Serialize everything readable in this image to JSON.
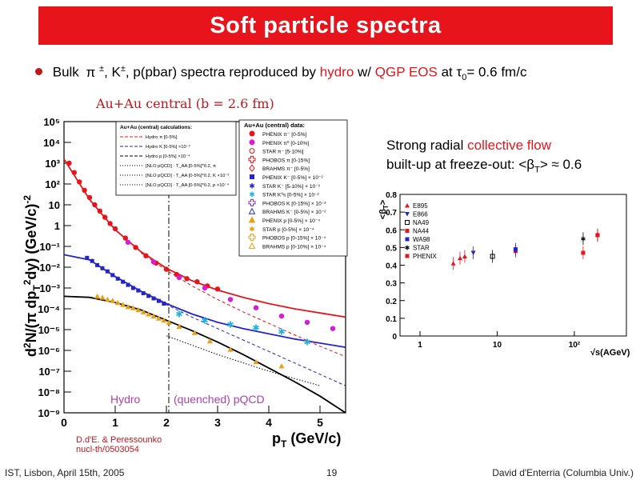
{
  "slide": {
    "title": "Soft particle spectra",
    "bullet": {
      "bulk": "Bulk",
      "pi": "π",
      "pm1": "±",
      "k": ", K",
      "pm2": "±",
      "rest": ", p(pbar) spectra reproduced by ",
      "hydro": "hydro",
      "w": " w/ ",
      "qgp": "QGP EOS",
      "at": " at ",
      "tau": "τ",
      "tau_sub": "0",
      "tau_val": "= 0.6 fm/c"
    },
    "auau_label": "Au+Au central (b = 2.6 fm)",
    "radial": {
      "line1_a": "Strong radial ",
      "line1_b": "collective flow",
      "line2_a": "built-up at freeze-out: <β",
      "line2_sub": "T",
      "line2_b": "> ≈ 0.6"
    },
    "reference": {
      "line1": "D.d'E. & Peressounko",
      "line2": "nucl-th/0503054"
    },
    "footer": {
      "left": "IST, Lisbon, April 15th, 2005",
      "center": "19",
      "right": "David d'Enterria (Columbia Univ.)"
    },
    "accent_red": "#e8141c"
  },
  "spectra_plot": {
    "ylabel": "d²N/(π dp_T²dy) (GeV/c)⁻²",
    "xlabel": "p_T (GeV/c)",
    "y_ticks": [
      "10⁵",
      "10⁴",
      "10³",
      "10²",
      "10",
      "1",
      "10⁻¹",
      "10⁻²",
      "10⁻³",
      "10⁻⁴",
      "10⁻⁵",
      "10⁻⁶",
      "10⁻⁷",
      "10⁻⁸",
      "10⁻⁹"
    ],
    "x_ticks": [
      "0",
      "1",
      "2",
      "3",
      "4",
      "5"
    ],
    "hydro_label": "Hydro",
    "pqcd_label": "(quenched) pQCD",
    "calc_legend_title": "Au+Au (central) calculations:",
    "calc_legend": [
      "Hydro π [0-5%]",
      "Hydro K [0-5%] ×10⁻²",
      "Hydro p [0-5%] ×10⁻⁴",
      "[NLO pQCD] · T_AA [0-5%]*0.2, π",
      "[NLO pQCD] · T_AA [0-5%]*0.2, K ×10⁻²",
      "[NLO pQCD] · T_AA [0-5%]*0.2, p ×10⁻⁴"
    ],
    "data_legend_title": "Au+Au (central) data:",
    "data_legend": [
      "PHENIX π⁻ [0-5%]",
      "PHENIX π⁰ [0-10%]",
      "STAR π⁻ [5-10%]",
      "PHOBOS π [0-15%]",
      "BRAHMS π⁻ [0-5%]",
      "PHENIX K⁻ [0-5%] × 10⁻²",
      "STAR K⁻ [5-10%] × 10⁻²",
      "STAR K⁰s [0-5%] × 10⁻²",
      "PHOBOS K [0-15%] × 10⁻²",
      "BRAHMS K⁻ [0-5%] × 10⁻²",
      "PHENIX p [0-5%] × 10⁻⁴",
      "STAR p [0-5%] × 10⁻⁴",
      "PHOBOS p [0-15%] × 10⁻⁴",
      "BRAHMS p [0-10%] × 10⁻⁴"
    ]
  },
  "flow_plot": {
    "ylabel": "<β_T>",
    "xlabel": "√s(AGeV)",
    "y_ticks": [
      "0",
      "0.1",
      "0.2",
      "0.3",
      "0.4",
      "0.5",
      "0.6",
      "0.7",
      "0.8"
    ],
    "x_ticks": [
      "1",
      "10",
      "10²"
    ],
    "legend": [
      "E895",
      "E866",
      "NA49",
      "NA44",
      "WA98",
      "STAR",
      "PHENIX"
    ]
  },
  "chart_data": [
    {
      "type": "scatter",
      "xlim": [
        0,
        5.5
      ],
      "ylim_log10": [
        -9,
        5
      ],
      "y_scale": "log",
      "series": [
        {
          "name": "PHENIX π⁻ [0-5%]",
          "color": "#e8141c",
          "x": [
            0.1,
            0.2,
            0.3,
            0.4,
            0.5,
            0.6,
            0.7,
            0.8,
            0.9,
            1.0,
            1.2,
            1.4,
            1.6,
            1.8,
            2.0,
            2.2,
            2.4,
            2.6,
            2.8,
            3.0
          ],
          "y_log10": [
            3.0,
            2.55,
            2.1,
            1.7,
            1.35,
            1.0,
            0.7,
            0.4,
            0.1,
            -0.15,
            -0.6,
            -1.05,
            -1.45,
            -1.8,
            -2.1,
            -2.35,
            -2.55,
            -2.7,
            -2.9,
            -3.05
          ]
        },
        {
          "name": "PHENIX π⁰ [0-10%]",
          "color": "#d81bd8",
          "x": [
            1.25,
            1.75,
            2.25,
            2.75,
            3.25,
            3.75,
            4.25,
            4.75,
            5.25
          ],
          "y_log10": [
            -0.8,
            -1.75,
            -2.5,
            -3.0,
            -3.55,
            -3.95,
            -4.35,
            -4.65,
            -4.95
          ]
        },
        {
          "name": "PHENIX K⁻ [0-5%] × 10⁻²",
          "color": "#2424c8",
          "x": [
            0.45,
            0.55,
            0.65,
            0.75,
            0.85,
            0.95,
            1.05,
            1.15,
            1.25,
            1.35,
            1.45,
            1.55,
            1.65,
            1.75,
            1.85,
            1.95
          ],
          "y_log10": [
            -1.55,
            -1.7,
            -1.9,
            -2.05,
            -2.2,
            -2.38,
            -2.55,
            -2.7,
            -2.85,
            -3.0,
            -3.12,
            -3.25,
            -3.38,
            -3.5,
            -3.62,
            -3.75
          ]
        },
        {
          "name": "STAR K⁰s [0-5%] × 10⁻²",
          "color": "#18b4e8",
          "x": [
            2.25,
            2.75,
            3.25,
            3.75,
            4.25,
            4.75
          ],
          "y_log10": [
            -4.25,
            -4.55,
            -4.75,
            -4.9,
            -5.1,
            -5.6
          ]
        },
        {
          "name": "PHENIX p [0-5%] × 10⁻⁴",
          "color": "#e8a018",
          "x": [
            0.65,
            0.75,
            0.85,
            0.95,
            1.05,
            1.15,
            1.25,
            1.35,
            1.45,
            1.55,
            1.65,
            1.75,
            1.85,
            1.95,
            2.05,
            2.25,
            2.55,
            2.85,
            3.25,
            3.75,
            4.25
          ],
          "y_log10": [
            -3.4,
            -3.45,
            -3.55,
            -3.6,
            -3.7,
            -3.8,
            -3.9,
            -3.95,
            -4.05,
            -4.15,
            -4.25,
            -4.35,
            -4.45,
            -4.55,
            -4.65,
            -4.85,
            -5.15,
            -5.55,
            -5.95,
            -6.55,
            -6.75
          ]
        }
      ],
      "curves": [
        {
          "name": "Hydro π",
          "color": "#e8141c",
          "style": "solid",
          "x": [
            0.0,
            0.5,
            1.0,
            1.5,
            2.0,
            2.5,
            3.0,
            3.5,
            4.0,
            4.5,
            5.0,
            5.5
          ],
          "y_log10": [
            3.2,
            1.25,
            -0.2,
            -1.25,
            -2.05,
            -2.65,
            -3.1,
            -3.45,
            -3.75,
            -4.0,
            -4.2,
            -4.4
          ]
        },
        {
          "name": "Hydro K",
          "color": "#2424c8",
          "style": "solid",
          "x": [
            0.0,
            0.5,
            1.0,
            1.5,
            2.0,
            2.5,
            3.0,
            3.5,
            4.0,
            4.5,
            5.0,
            5.5
          ],
          "y_log10": [
            -1.4,
            -1.65,
            -2.45,
            -3.15,
            -3.75,
            -4.25,
            -4.65,
            -4.95,
            -5.2,
            -5.45,
            -5.65,
            -5.85
          ]
        },
        {
          "name": "Hydro p",
          "color": "#000000",
          "style": "solid",
          "x": [
            0.0,
            0.5,
            1.0,
            1.5,
            2.0,
            2.5,
            3.0,
            3.5,
            4.0,
            4.5,
            5.0,
            5.5
          ],
          "y_log10": [
            -3.4,
            -3.45,
            -3.7,
            -4.05,
            -4.55,
            -5.05,
            -5.6,
            -6.2,
            -6.85,
            -7.5,
            -8.2,
            -9.0
          ]
        },
        {
          "name": "Hydro π [0-5%] dashed",
          "color": "#e8141c",
          "style": "dashed",
          "x": [
            1.5,
            2.0,
            2.5,
            3.0,
            3.5,
            4.0,
            4.5,
            5.0,
            5.5
          ],
          "y_log10": [
            -1.3,
            -2.15,
            -2.9,
            -3.55,
            -4.15,
            -4.7,
            -5.25,
            -5.8,
            -6.3
          ]
        },
        {
          "name": "Hydro K [0-5%] dashed",
          "color": "#2424c8",
          "style": "dashed",
          "x": [
            1.5,
            2.0,
            2.5,
            3.0,
            3.5,
            4.0,
            4.5,
            5.0,
            5.5
          ],
          "y_log10": [
            -3.15,
            -3.8,
            -4.4,
            -4.95,
            -5.5,
            -6.05,
            -6.6,
            -7.15,
            -7.7
          ]
        },
        {
          "name": "pQCD p dotted",
          "color": "#000000",
          "style": "dotted",
          "x": [
            2.0,
            2.5,
            3.0,
            3.5,
            4.0,
            4.5,
            5.0
          ],
          "y_log10": [
            -5.3,
            -5.75,
            -6.2,
            -6.6,
            -7.0,
            -7.35,
            -7.7
          ]
        }
      ]
    },
    {
      "type": "scatter",
      "x_scale": "log",
      "xlim": [
        1,
        400
      ],
      "ylim": [
        0,
        0.8
      ],
      "series": [
        {
          "name": "E895",
          "color": "#e8141c",
          "x": [
            2.7,
            3.3,
            3.8
          ],
          "y": [
            0.41,
            0.44,
            0.45
          ]
        },
        {
          "name": "E866",
          "color": "#2424c8",
          "x": [
            4.9
          ],
          "y": [
            0.47
          ]
        },
        {
          "name": "NA49",
          "color": "#000000",
          "x": [
            8.7
          ],
          "y": [
            0.45
          ]
        },
        {
          "name": "NA44",
          "color": "#e8141c",
          "x": [
            17.3
          ],
          "y": [
            0.48
          ]
        },
        {
          "name": "WA98",
          "color": "#2424c8",
          "x": [
            17.3
          ],
          "y": [
            0.49
          ]
        },
        {
          "name": "STAR",
          "color": "#000000",
          "x": [
            130,
            200
          ],
          "y": [
            0.55,
            0.57
          ]
        },
        {
          "name": "PHENIX",
          "color": "#e8141c",
          "x": [
            130,
            200
          ],
          "y": [
            0.47,
            0.57
          ]
        }
      ]
    }
  ]
}
